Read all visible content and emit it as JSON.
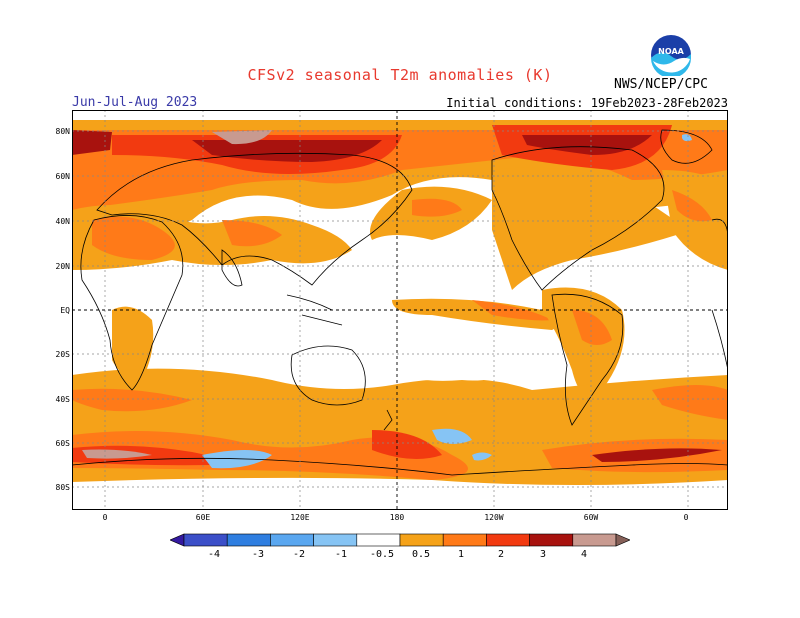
{
  "header": {
    "title": "CFSv2 seasonal T2m anomalies (K)",
    "season": "Jun-Jul-Aug 2023",
    "initial_conditions": "Initial conditions: 19Feb2023-28Feb2023",
    "agency": "NWS/NCEP/CPC",
    "logo_text": "NOAA"
  },
  "map": {
    "lat_labels": [
      "80N",
      "60N",
      "40N",
      "20N",
      "EQ",
      "20S",
      "40S",
      "60S",
      "80S"
    ],
    "lon_labels": [
      "0",
      "60E",
      "120E",
      "180",
      "120W",
      "60W",
      "0"
    ]
  },
  "colorbar": {
    "labels": [
      "-4",
      "-3",
      "-2",
      "-1",
      "-0.5",
      "0.5",
      "1",
      "2",
      "3",
      "4"
    ],
    "colors": [
      "#3419a0",
      "#3b4fc8",
      "#2f7ee0",
      "#5aa7f0",
      "#86c4f4",
      "#ffffff",
      "#f5a219",
      "#ff7a18",
      "#f23a10",
      "#a8120e",
      "#c89a90",
      "#866058"
    ]
  },
  "colors": {
    "title": "#e8392e",
    "season": "#3a3aa8"
  }
}
